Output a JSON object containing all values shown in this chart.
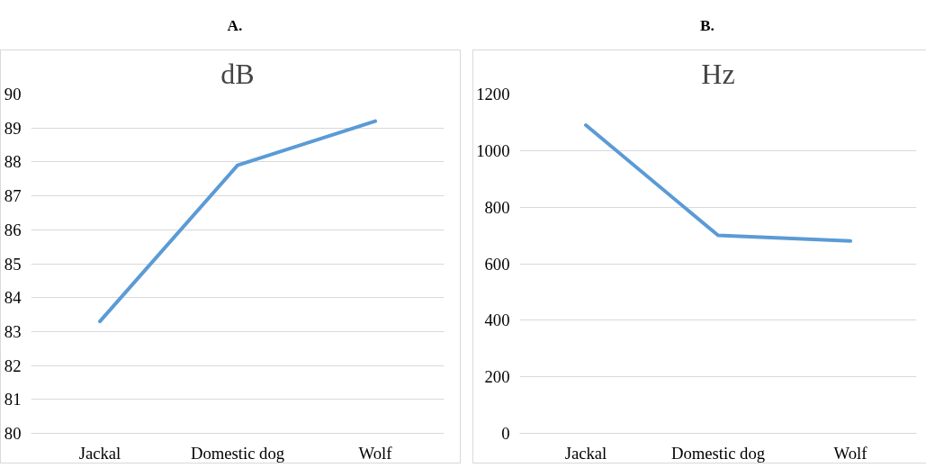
{
  "chart_data": [
    {
      "type": "line",
      "title": "dB",
      "annotations": [
        "A."
      ],
      "categories": [
        "Jackal",
        "Domestic dog",
        "Wolf"
      ],
      "series": [
        {
          "color": "#5b9bd5",
          "values": [
            83.3,
            87.9,
            89.2
          ]
        }
      ],
      "ylim": [
        80,
        90
      ],
      "yticks": [
        80,
        81,
        82,
        83,
        84,
        85,
        86,
        87,
        88,
        89,
        90
      ],
      "grid": "y",
      "marker": "none",
      "line_style": "solid"
    },
    {
      "type": "line",
      "title": "Hz",
      "annotations": [
        "B."
      ],
      "categories": [
        "Jackal",
        "Domestic dog",
        "Wolf"
      ],
      "series": [
        {
          "color": "#5b9bd5",
          "values": [
            1090,
            700,
            680
          ]
        }
      ],
      "ylim": [
        0,
        1200
      ],
      "yticks": [
        0,
        200,
        400,
        600,
        800,
        1000,
        1200
      ],
      "grid": "y",
      "marker": "none",
      "line_style": "solid"
    }
  ]
}
